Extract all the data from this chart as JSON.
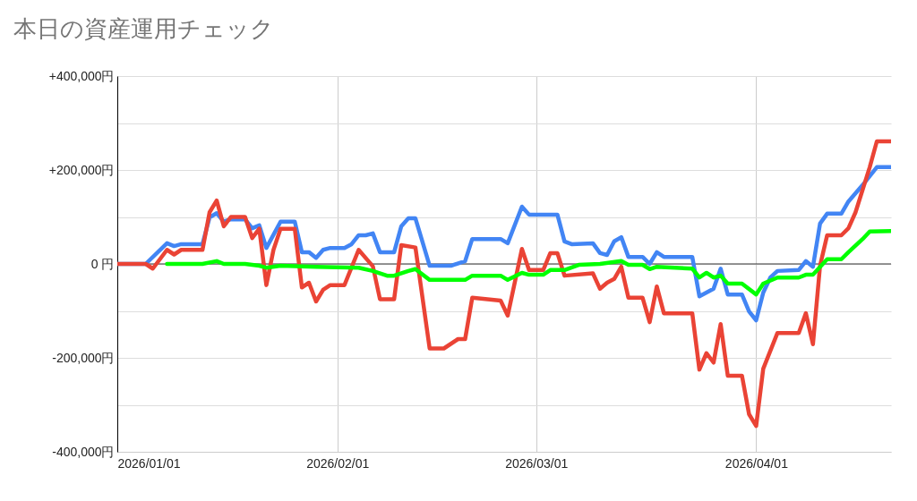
{
  "chart_data": {
    "type": "line",
    "title": "本日の資産運用チェック",
    "xlim": [
      "2026-01-01",
      "2026-04-20"
    ],
    "xticks": [
      {
        "value": "2026-01-01",
        "label": "2026/01/01"
      },
      {
        "value": "2026-02-01",
        "label": "2026/02/01"
      },
      {
        "value": "2026-03-01",
        "label": "2026/03/01"
      },
      {
        "value": "2026-04-01",
        "label": "2026/04/01"
      }
    ],
    "ylim": [
      -400000,
      400000
    ],
    "yticks": [
      {
        "value": -400000,
        "label": "-400,000円"
      },
      {
        "value": -300000,
        "label": null
      },
      {
        "value": -200000,
        "label": "-200,000円"
      },
      {
        "value": -100000,
        "label": null
      },
      {
        "value": 0,
        "label": "0 円"
      },
      {
        "value": 100000,
        "label": null
      },
      {
        "value": 200000,
        "label": "+200,000円"
      },
      {
        "value": 300000,
        "label": null
      },
      {
        "value": 400000,
        "label": "+400,000円"
      }
    ],
    "grid": true,
    "legend": false,
    "line_style": "solid",
    "marker": "none",
    "ref_lines": [
      {
        "axis": "y",
        "value": 0,
        "color": "#333333"
      }
    ],
    "series": [
      {
        "color": "#4285f4",
        "x": [
          "2026-01-01",
          "2026-01-05",
          "2026-01-08",
          "2026-01-09",
          "2026-01-10",
          "2026-01-13",
          "2026-01-14",
          "2026-01-15",
          "2026-01-16",
          "2026-01-17",
          "2026-01-19",
          "2026-01-20",
          "2026-01-21",
          "2026-01-22",
          "2026-01-24",
          "2026-01-26",
          "2026-01-27",
          "2026-01-28",
          "2026-01-29",
          "2026-01-30",
          "2026-01-31",
          "2026-02-02",
          "2026-02-03",
          "2026-02-04",
          "2026-02-05",
          "2026-02-06",
          "2026-02-07",
          "2026-02-09",
          "2026-02-10",
          "2026-02-11",
          "2026-02-12",
          "2026-02-14",
          "2026-02-17",
          "2026-02-19",
          "2026-02-20",
          "2026-02-24",
          "2026-02-25",
          "2026-02-27",
          "2026-02-28",
          "2026-03-04",
          "2026-03-05",
          "2026-03-06",
          "2026-03-09",
          "2026-03-10",
          "2026-03-11",
          "2026-03-12",
          "2026-03-13",
          "2026-03-14",
          "2026-03-16",
          "2026-03-17",
          "2026-03-18",
          "2026-03-19",
          "2026-03-23",
          "2026-03-24",
          "2026-03-25",
          "2026-03-26",
          "2026-03-27",
          "2026-03-28",
          "2026-03-30",
          "2026-03-31",
          "2026-04-01",
          "2026-04-02",
          "2026-04-03",
          "2026-04-04",
          "2026-04-07",
          "2026-04-08",
          "2026-04-09",
          "2026-04-10",
          "2026-04-11",
          "2026-04-13",
          "2026-04-14",
          "2026-04-16",
          "2026-04-18",
          "2026-04-20"
        ],
        "values": [
          0,
          0,
          44000,
          38000,
          42000,
          42000,
          99000,
          108000,
          90000,
          95000,
          95000,
          76000,
          82000,
          34000,
          90000,
          90000,
          25000,
          25000,
          13000,
          30000,
          34000,
          34000,
          42000,
          61000,
          61000,
          65000,
          25000,
          25000,
          80000,
          97000,
          97000,
          -4000,
          -4000,
          6000,
          53000,
          53000,
          44000,
          122000,
          105000,
          105000,
          48000,
          42000,
          44000,
          23000,
          19000,
          48000,
          57000,
          15000,
          15000,
          0,
          25000,
          15000,
          15000,
          -69000,
          -61000,
          -53000,
          -10000,
          -65000,
          -65000,
          -101000,
          -120000,
          -61000,
          -29000,
          -15000,
          -13000,
          6000,
          -6000,
          86000,
          107000,
          107000,
          133000,
          168000,
          206000,
          206000
        ]
      },
      {
        "color": "#ea4335",
        "x": [
          "2026-01-01",
          "2026-01-05",
          "2026-01-06",
          "2026-01-08",
          "2026-01-09",
          "2026-01-10",
          "2026-01-13",
          "2026-01-14",
          "2026-01-15",
          "2026-01-16",
          "2026-01-17",
          "2026-01-19",
          "2026-01-20",
          "2026-01-21",
          "2026-01-22",
          "2026-01-23",
          "2026-01-24",
          "2026-01-26",
          "2026-01-27",
          "2026-01-28",
          "2026-01-29",
          "2026-01-30",
          "2026-01-31",
          "2026-02-02",
          "2026-02-04",
          "2026-02-06",
          "2026-02-07",
          "2026-02-09",
          "2026-02-10",
          "2026-02-12",
          "2026-02-14",
          "2026-02-16",
          "2026-02-18",
          "2026-02-19",
          "2026-02-20",
          "2026-02-24",
          "2026-02-25",
          "2026-02-27",
          "2026-02-28",
          "2026-03-02",
          "2026-03-03",
          "2026-03-04",
          "2026-03-05",
          "2026-03-09",
          "2026-03-10",
          "2026-03-11",
          "2026-03-12",
          "2026-03-13",
          "2026-03-14",
          "2026-03-16",
          "2026-03-17",
          "2026-03-18",
          "2026-03-19",
          "2026-03-23",
          "2026-03-24",
          "2026-03-25",
          "2026-03-26",
          "2026-03-27",
          "2026-03-28",
          "2026-03-30",
          "2026-03-31",
          "2026-04-01",
          "2026-04-02",
          "2026-04-04",
          "2026-04-07",
          "2026-04-08",
          "2026-04-09",
          "2026-04-10",
          "2026-04-11",
          "2026-04-13",
          "2026-04-14",
          "2026-04-15",
          "2026-04-17",
          "2026-04-18",
          "2026-04-20"
        ],
        "values": [
          0,
          0,
          -10000,
          30000,
          20000,
          30000,
          30000,
          110000,
          135000,
          80000,
          100000,
          100000,
          55000,
          75000,
          -45000,
          30000,
          75000,
          75000,
          -50000,
          -40000,
          -80000,
          -55000,
          -45000,
          -45000,
          30000,
          -5000,
          -75000,
          -75000,
          40000,
          35000,
          -180000,
          -180000,
          -160000,
          -160000,
          -72000,
          -78000,
          -110000,
          32000,
          -13000,
          -13000,
          23000,
          23000,
          -25000,
          -20000,
          -53000,
          -40000,
          -32000,
          -6000,
          -72000,
          -72000,
          -124000,
          -48000,
          -105000,
          -105000,
          -225000,
          -190000,
          -210000,
          -128000,
          -238000,
          -238000,
          -320000,
          -345000,
          -223000,
          -147000,
          -147000,
          -105000,
          -171000,
          -4000,
          61000,
          61000,
          76000,
          110000,
          206000,
          261000,
          261000
        ]
      },
      {
        "color": "#00ff00",
        "x": [
          "2026-01-08",
          "2026-01-13",
          "2026-01-15",
          "2026-01-16",
          "2026-01-19",
          "2026-01-21",
          "2026-01-22",
          "2026-01-24",
          "2026-01-29",
          "2026-02-04",
          "2026-02-06",
          "2026-02-08",
          "2026-02-09",
          "2026-02-11",
          "2026-02-12",
          "2026-02-14",
          "2026-02-17",
          "2026-02-19",
          "2026-02-20",
          "2026-02-24",
          "2026-02-25",
          "2026-02-27",
          "2026-02-28",
          "2026-03-02",
          "2026-03-03",
          "2026-03-05",
          "2026-03-07",
          "2026-03-10",
          "2026-03-13",
          "2026-03-14",
          "2026-03-16",
          "2026-03-17",
          "2026-03-18",
          "2026-03-23",
          "2026-03-24",
          "2026-03-25",
          "2026-03-26",
          "2026-03-27",
          "2026-03-28",
          "2026-03-30",
          "2026-04-01",
          "2026-04-02",
          "2026-04-04",
          "2026-04-07",
          "2026-04-08",
          "2026-04-09",
          "2026-04-11",
          "2026-04-13",
          "2026-04-14",
          "2026-04-16",
          "2026-04-17",
          "2026-04-20"
        ],
        "values": [
          0,
          0,
          6000,
          0,
          0,
          -4000,
          -8000,
          -4000,
          -6000,
          -8000,
          -15000,
          -25000,
          -25000,
          -15000,
          -11000,
          -34000,
          -34000,
          -34000,
          -25000,
          -25000,
          -34000,
          -19000,
          -23000,
          -23000,
          -13000,
          -13000,
          -2000,
          0,
          6000,
          -2000,
          -2000,
          -11000,
          -6000,
          -10000,
          -29000,
          -19000,
          -29000,
          -25000,
          -42000,
          -42000,
          -65000,
          -42000,
          -29000,
          -29000,
          -23000,
          -23000,
          10000,
          10000,
          25000,
          53000,
          69000,
          70000
        ]
      }
    ]
  }
}
